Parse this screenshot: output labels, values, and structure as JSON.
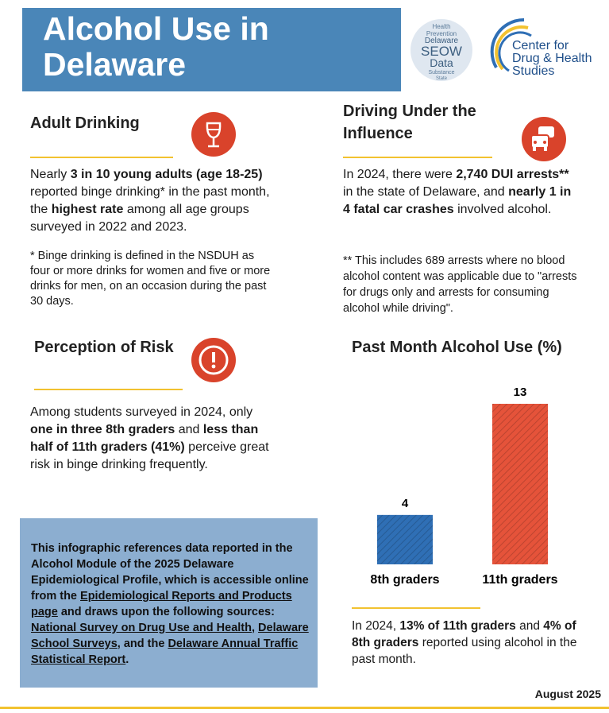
{
  "header": {
    "title_lines": [
      "Alcohol Use in",
      "Delaware"
    ],
    "seow_words": [
      "Health",
      "Prevention",
      "Delaware",
      "SEOW",
      "Data",
      "Substance",
      "State"
    ],
    "org_lines": [
      "Center for",
      "Drug & Health",
      "Studies"
    ]
  },
  "adult": {
    "heading": "Adult Drinking",
    "body": [
      {
        "t": "Nearly "
      },
      {
        "t": "3 in 10 young adults (age 18-25)",
        "b": true
      },
      {
        "t": " reported binge drinking* in the past month, the "
      },
      {
        "t": "highest rate",
        "b": true
      },
      {
        "t": " among all age groups surveyed in 2022 and 2023."
      }
    ],
    "note": "* Binge drinking is defined in the NSDUH as four or more drinks for women and five or more drinks for men, on an occasion during the past 30 days."
  },
  "dui": {
    "heading_lines": [
      "Driving Under the",
      "Influence"
    ],
    "body": [
      {
        "t": "In 2024, there were "
      },
      {
        "t": "2,740 DUI arrests**",
        "b": true
      },
      {
        "t": " in the state of Delaware, and "
      },
      {
        "t": "nearly 1 in 4 fatal car crashes",
        "b": true
      },
      {
        "t": " involved alcohol."
      }
    ],
    "note": "** This includes 689 arrests where no blood alcohol content was applicable due to \"arrests for drugs only and arrests for consuming alcohol while driving\"."
  },
  "risk": {
    "heading": "Perception of Risk",
    "body": [
      {
        "t": "Among students surveyed in 2024, only "
      },
      {
        "t": "one in three 8th graders",
        "b": true
      },
      {
        "t": " and "
      },
      {
        "t": "less than half of 11th graders (41%)",
        "b": true
      },
      {
        "t": " perceive great risk in binge drinking frequently."
      }
    ]
  },
  "chart_data": {
    "type": "bar",
    "title": "Past Month Alcohol Use (%)",
    "categories": [
      "8th graders",
      "11th graders"
    ],
    "values": [
      4,
      13
    ],
    "colors": [
      "#2f6fb5",
      "#e5533a"
    ],
    "caption": [
      {
        "t": "In 2024, "
      },
      {
        "t": "13% of 11th graders",
        "b": true
      },
      {
        "t": " and "
      },
      {
        "t": "4% of 8th graders",
        "b": true
      },
      {
        "t": " reported using alcohol in the past month."
      }
    ]
  },
  "sources": [
    {
      "t": "This infographic references data reported in the Alcohol Module of the 2025 Delaware Epidemiological Profile, which is accessible online from the "
    },
    {
      "t": "Epidemiological Reports and Products page",
      "u": true
    },
    {
      "t": " and draws upon the following sources: "
    },
    {
      "t": "National Survey on Drug Use and Health",
      "u": true
    },
    {
      "t": ", "
    },
    {
      "t": "Delaware School Surveys",
      "u": true
    },
    {
      "t": ", and the "
    },
    {
      "t": "Delaware Annual Traffic Statistical Report",
      "u": true
    },
    {
      "t": "."
    }
  ],
  "footer": {
    "date": "August 2025"
  }
}
